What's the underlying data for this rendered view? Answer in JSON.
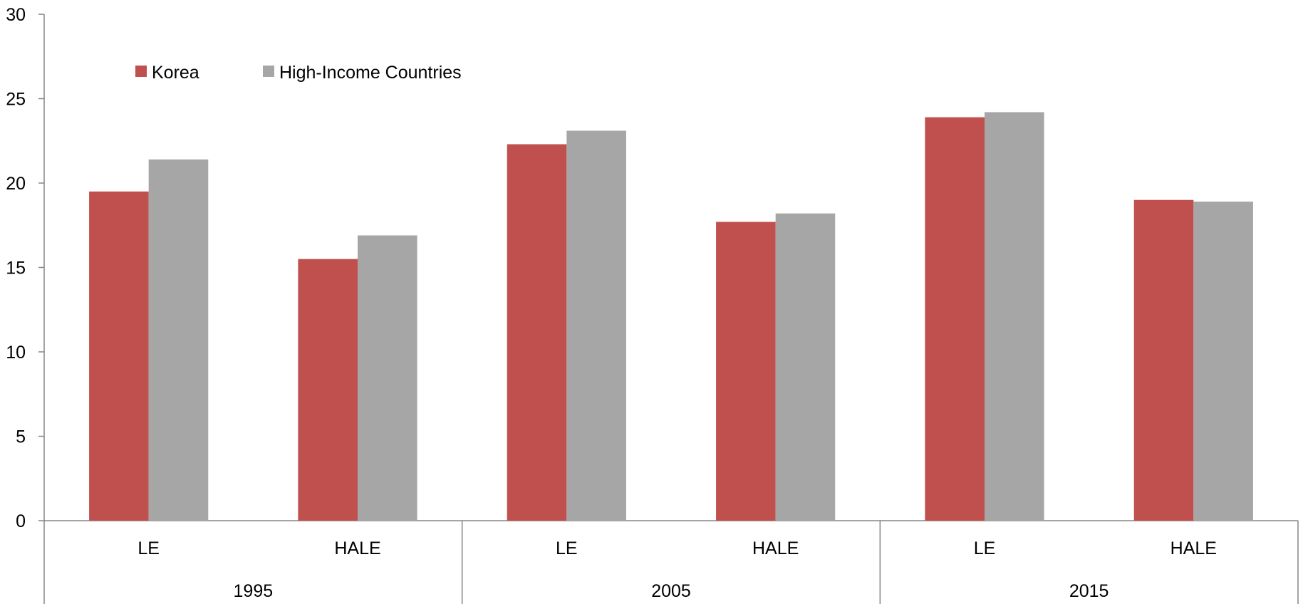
{
  "chart_data": {
    "type": "bar",
    "title": "",
    "xlabel": "",
    "ylabel": "",
    "ylim": [
      0,
      30
    ],
    "yticks": [
      0,
      5,
      10,
      15,
      20,
      25,
      30
    ],
    "grid": false,
    "legend_position": "top-left",
    "groups": [
      {
        "label": "1995",
        "categories": [
          "LE",
          "HALE"
        ]
      },
      {
        "label": "2005",
        "categories": [
          "LE",
          "HALE"
        ]
      },
      {
        "label": "2015",
        "categories": [
          "LE",
          "HALE"
        ]
      }
    ],
    "series": [
      {
        "name": "Korea",
        "color": "#C0504D",
        "values": [
          19.5,
          15.5,
          22.3,
          17.7,
          23.9,
          19.0
        ]
      },
      {
        "name": "High-Income Countries",
        "color": "#A6A6A6",
        "values": [
          21.4,
          16.9,
          23.1,
          18.2,
          24.2,
          18.9
        ]
      }
    ]
  }
}
